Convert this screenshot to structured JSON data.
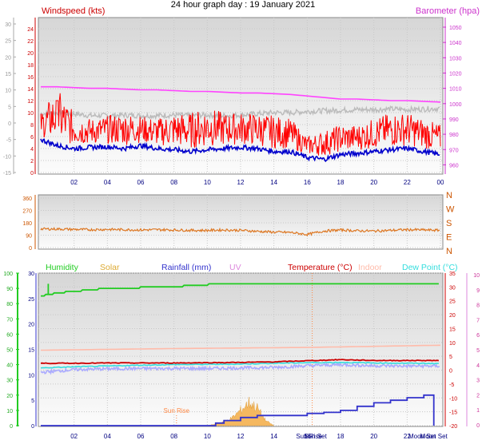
{
  "header": {
    "title": "24 hour graph day : 19 January 2021"
  },
  "colors": {
    "windspeed_label": "#cc0000",
    "barometer": "#ff44ff",
    "wind_gust": "#ff0000",
    "wind_avg": "#0000cc",
    "wind_max_trace": "#bbbbbb",
    "wind_dir": "#dd7722",
    "humidity": "#22cc22",
    "solar": "#ddaa33",
    "rainfall": "#3333cc",
    "uv": "#dd88dd",
    "temperature": "#cc0000",
    "indoor": "#ffbbaa",
    "dew_point": "#33dddd",
    "apparent": "#aaaaff",
    "sun_marker": "#ff8844"
  },
  "chart_data": [
    {
      "type": "line",
      "id": "wind",
      "title": "",
      "left_axis_label": "Windspeed (kts)",
      "right_axis_label": "Barometer (hpa)",
      "x_ticks": [
        "02",
        "04",
        "06",
        "08",
        "10",
        "12",
        "14",
        "16",
        "18",
        "20",
        "22",
        "00"
      ],
      "x_range_hours": [
        0,
        24
      ],
      "y_left_ticks_gray": [
        "30",
        "25",
        "20",
        "15",
        "10",
        "5",
        "0",
        "-5",
        "-10",
        "-15"
      ],
      "y_left_range_gray": [
        -15,
        30
      ],
      "y_left_ticks_red": [
        "24",
        "22",
        "20",
        "18",
        "16",
        "14",
        "12",
        "10",
        "8",
        "6",
        "4",
        "2",
        "0"
      ],
      "y_left_range_red": [
        0,
        24
      ],
      "y_right_ticks": [
        "1050",
        "1040",
        "1030",
        "1020",
        "1010",
        "1000",
        "990",
        "980",
        "970",
        "960"
      ],
      "y_right_range": [
        955,
        1050
      ],
      "series": [
        {
          "name": "Barometer (hpa)",
          "axis": "right",
          "x": [
            0,
            1,
            2,
            3,
            4,
            5,
            6,
            7,
            8,
            9,
            10,
            11,
            12,
            13,
            14,
            15,
            16,
            17,
            18,
            19,
            20,
            21,
            22,
            23,
            24
          ],
          "values": [
            1011,
            1011,
            1010.5,
            1010,
            1010,
            1009.5,
            1009,
            1009,
            1008.5,
            1008,
            1008,
            1007.5,
            1007,
            1007,
            1006.5,
            1006,
            1005,
            1004,
            1003,
            1003,
            1002.5,
            1002,
            1002,
            1001.5,
            1001
          ]
        },
        {
          "name": "",
          "axis": "left_red",
          "x": [
            0,
            1,
            2,
            3,
            4,
            5,
            6,
            7,
            8,
            9,
            10,
            11,
            12,
            13,
            14,
            15,
            16,
            17,
            18,
            19,
            20,
            21,
            22,
            23,
            24
          ],
          "values": [
            8,
            12,
            8,
            7,
            7.5,
            8,
            7.5,
            7,
            8,
            8,
            9,
            8,
            8,
            8,
            7.5,
            7,
            4,
            5,
            6,
            6,
            7,
            8,
            8,
            7,
            6
          ]
        },
        {
          "name": "",
          "axis": "left_red",
          "x": [
            0,
            1,
            2,
            3,
            4,
            5,
            6,
            7,
            8,
            9,
            10,
            11,
            12,
            13,
            14,
            15,
            16,
            17,
            18,
            19,
            20,
            21,
            22,
            23,
            24
          ],
          "values": [
            5.5,
            4.5,
            4,
            4.2,
            4.3,
            4,
            4.5,
            4,
            3.8,
            3.5,
            3.8,
            4,
            4.2,
            4,
            3.5,
            3.5,
            2.5,
            2.2,
            3,
            3.2,
            3.5,
            3.8,
            4,
            3.5,
            3
          ]
        },
        {
          "name": "",
          "axis": "left_red",
          "x": [
            0,
            1,
            2,
            3,
            4,
            5,
            6,
            7,
            8,
            9,
            10,
            11,
            12,
            13,
            14,
            15,
            16,
            17,
            18,
            19,
            20,
            21,
            22,
            23,
            24
          ],
          "values": [
            9.8,
            10,
            9.8,
            9.5,
            9.5,
            9.6,
            9.5,
            9.5,
            9.6,
            9.5,
            9.6,
            9.5,
            9.6,
            9.8,
            10,
            10,
            10.2,
            10.3,
            10.4,
            10.5,
            10.5,
            10.6,
            10.5,
            10.6,
            10.7
          ]
        }
      ]
    },
    {
      "type": "line",
      "id": "direction",
      "title": "",
      "x_range_hours": [
        0,
        24
      ],
      "y_left_ticks": [
        "360",
        "270",
        "180",
        "90",
        "0"
      ],
      "y_range": [
        0,
        360
      ],
      "y_right_ticks": [
        "N",
        "W",
        "S",
        "E",
        "N"
      ],
      "series": [
        {
          "name": "",
          "x": [
            0,
            1,
            2,
            3,
            4,
            5,
            6,
            7,
            8,
            9,
            10,
            11,
            12,
            13,
            14,
            15,
            16,
            17,
            18,
            19,
            20,
            21,
            22,
            23,
            24
          ],
          "values": [
            135,
            135,
            132,
            130,
            132,
            130,
            128,
            130,
            128,
            125,
            125,
            128,
            125,
            118,
            112,
            110,
            95,
            120,
            128,
            122,
            120,
            125,
            130,
            128,
            125
          ]
        }
      ]
    },
    {
      "type": "line",
      "id": "temp",
      "title": "",
      "legend": [
        "Humidity",
        "Solar",
        "Rainfall (mm)",
        "UV",
        "Temperature (°C)",
        "Indoor",
        "Dew Point (°C)"
      ],
      "x_ticks": [
        "02",
        "04",
        "06",
        "08",
        "10",
        "12",
        "14",
        "16",
        "18",
        "20",
        "22"
      ],
      "x_range_hours": [
        0,
        24
      ],
      "extra_x_labels": [
        "Sun Rise",
        "Sun Set",
        "Moon Set",
        "Moon Set"
      ],
      "annotation": "Sun Rise",
      "y_axis_humidity": [
        "100",
        "90",
        "80",
        "70",
        "60",
        "50",
        "40",
        "30",
        "20",
        "10",
        "0"
      ],
      "y_axis_rain": [
        "30",
        "25",
        "20",
        "15",
        "10",
        "5",
        "0"
      ],
      "y_axis_temp": [
        "35",
        "30",
        "25",
        "20",
        "15",
        "10",
        "5",
        "0",
        "-5",
        "-10",
        "-15",
        "-20"
      ],
      "y_axis_uv": [
        "10",
        "9",
        "8",
        "7",
        "6",
        "5",
        "4",
        "3",
        "2",
        "1",
        "0"
      ],
      "temp_range": [
        -20,
        35
      ],
      "humidity_range": [
        0,
        100
      ],
      "rain_range": [
        0,
        30
      ],
      "series": [
        {
          "name": "Humidity",
          "axis": "humidity",
          "x": [
            0,
            0.5,
            1,
            2,
            3,
            4,
            5,
            6,
            7,
            8,
            9,
            10,
            11,
            12,
            13,
            14,
            15,
            16,
            17,
            18,
            19,
            20,
            21,
            22,
            23,
            24
          ],
          "values": [
            85,
            86,
            87,
            88,
            89,
            90,
            90,
            90.5,
            91,
            91,
            92,
            92.5,
            93,
            93,
            93,
            93,
            93,
            93,
            93,
            93,
            93,
            93,
            93,
            93,
            93,
            93
          ]
        },
        {
          "name": "Indoor",
          "axis": "temp",
          "x": [
            0,
            4,
            8,
            12,
            16,
            20,
            24
          ],
          "values": [
            7.2,
            7.5,
            7.8,
            8,
            8.2,
            8.6,
            9
          ]
        },
        {
          "name": "Temperature (°C)",
          "axis": "temp",
          "x": [
            0,
            2,
            4,
            6,
            8,
            10,
            12,
            14,
            16,
            18,
            20,
            22,
            24
          ],
          "values": [
            2.5,
            2.5,
            2.6,
            2.6,
            2.6,
            2.7,
            2.8,
            3,
            3.4,
            3.8,
            3.5,
            3.5,
            3.5
          ]
        },
        {
          "name": "Dew Point (°C)",
          "axis": "temp",
          "x": [
            0,
            2,
            4,
            6,
            8,
            10,
            12,
            14,
            16,
            18,
            20,
            22,
            24
          ],
          "values": [
            0.8,
            1.2,
            1.5,
            1.8,
            2,
            2.1,
            2.2,
            2.5,
            2.7,
            2.8,
            2.6,
            2.5,
            2.4
          ]
        },
        {
          "name": "",
          "axis": "temp",
          "x": [
            0,
            2,
            4,
            6,
            8,
            10,
            12,
            14,
            16,
            18,
            20,
            22,
            24
          ],
          "values": [
            -0.8,
            0.2,
            0.5,
            0.6,
            0.6,
            0.6,
            0.8,
            1,
            1.6,
            2,
            1.6,
            1.5,
            1.5
          ]
        },
        {
          "name": "Rainfall (mm)",
          "axis": "rain",
          "x": [
            0,
            10,
            10.5,
            11,
            12,
            13,
            16,
            17,
            18,
            19,
            20,
            21,
            22,
            23,
            23.5,
            23.6
          ],
          "values": [
            0,
            0,
            0.5,
            1,
            1.6,
            2,
            2.4,
            2.6,
            3,
            3.8,
            4.5,
            5,
            5.5,
            6,
            6,
            0
          ]
        },
        {
          "name": "Solar",
          "axis": "rain",
          "x": [
            10,
            10.5,
            11,
            11.5,
            12,
            12.5,
            13,
            13.5,
            14
          ],
          "values": [
            0,
            0.3,
            0.8,
            1.5,
            3,
            4.5,
            3.5,
            1,
            0
          ]
        }
      ]
    }
  ]
}
